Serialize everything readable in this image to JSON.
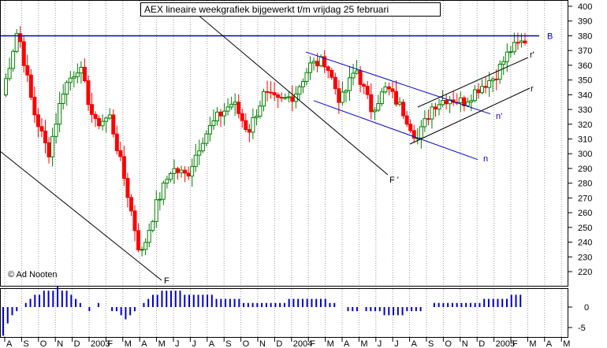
{
  "chart_data": {
    "type": "candlestick",
    "title": "AEX lineaire weekgrafiek bijgewerkt t/m vrijdag 25 februari",
    "copyright": "© Ad Nooten",
    "x_tick_labels": [
      "A",
      "S",
      "O",
      "N",
      "D",
      "2003",
      "F",
      "M",
      "A",
      "M",
      "J",
      "J",
      "A",
      "S",
      "O",
      "N",
      "D",
      "2004",
      "F",
      "M",
      "A",
      "M",
      "J",
      "J",
      "A",
      "S",
      "O",
      "N",
      "D",
      "2005",
      "F",
      "M",
      "A",
      "M"
    ],
    "ylim": [
      215,
      405
    ],
    "yticks": [
      220,
      230,
      240,
      250,
      260,
      270,
      280,
      290,
      300,
      310,
      320,
      330,
      340,
      350,
      360,
      370,
      380,
      390,
      400
    ],
    "grid": "vertical-dotted",
    "price_series": {
      "name": "AEX",
      "approx_close_waypoints": [
        {
          "x": "Aug 2002 (start)",
          "y": 340
        },
        {
          "x": "Aug 2002",
          "y": 385
        },
        {
          "x": "Sep 2002",
          "y": 330
        },
        {
          "x": "Oct 2002",
          "y": 300
        },
        {
          "x": "Nov 2002",
          "y": 345
        },
        {
          "x": "Dec 2002",
          "y": 360
        },
        {
          "x": "Dec 2002",
          "y": 320
        },
        {
          "x": "Jan 2003",
          "y": 325
        },
        {
          "x": "Feb 2003",
          "y": 280
        },
        {
          "x": "Mar 2003",
          "y": 230
        },
        {
          "x": "Mar 2003",
          "y": 265
        },
        {
          "x": "Apr 2003",
          "y": 290
        },
        {
          "x": "May 2003",
          "y": 285
        },
        {
          "x": "Jun 2003",
          "y": 310
        },
        {
          "x": "Jul 2003",
          "y": 325
        },
        {
          "x": "Aug 2003",
          "y": 335
        },
        {
          "x": "Sep 2003",
          "y": 315
        },
        {
          "x": "Oct 2003",
          "y": 340
        },
        {
          "x": "Nov 2003",
          "y": 335
        },
        {
          "x": "Dec 2003",
          "y": 340
        },
        {
          "x": "Jan 2004",
          "y": 360
        },
        {
          "x": "Feb 2004",
          "y": 363
        },
        {
          "x": "Mar 2004",
          "y": 335
        },
        {
          "x": "Apr 2004",
          "y": 358
        },
        {
          "x": "May 2004",
          "y": 330
        },
        {
          "x": "Jun 2004",
          "y": 345
        },
        {
          "x": "Jul 2004",
          "y": 330
        },
        {
          "x": "Aug 2004",
          "y": 310
        },
        {
          "x": "Sep 2004",
          "y": 333
        },
        {
          "x": "Oct 2004",
          "y": 338
        },
        {
          "x": "Nov 2004",
          "y": 335
        },
        {
          "x": "Dec 2004",
          "y": 345
        },
        {
          "x": "Jan 2005",
          "y": 352
        },
        {
          "x": "Feb 2005",
          "y": 370
        },
        {
          "x": "25 Feb 2005",
          "y": 377
        }
      ]
    },
    "trendlines": [
      {
        "label": "B",
        "color": "#0000cc",
        "level": 380
      },
      {
        "label": "F",
        "color": "#000000"
      },
      {
        "label": "F '",
        "color": "#000000"
      },
      {
        "label": "n",
        "color": "#0000cc"
      },
      {
        "label": "n'",
        "color": "#0000cc"
      },
      {
        "label": "r",
        "color": "#000000"
      },
      {
        "label": "r'",
        "color": "#000000"
      }
    ],
    "indicator": {
      "yticks": [
        0,
        -5
      ],
      "approx_values": [
        -7,
        -4,
        -2,
        -1,
        0,
        1,
        2,
        3,
        3,
        4,
        4,
        4,
        5,
        4,
        4,
        3,
        2,
        1,
        0,
        -1,
        0,
        1,
        0,
        0,
        -1,
        -1,
        -2,
        -3,
        -2,
        -1,
        0,
        1,
        2,
        3,
        3,
        4,
        4,
        4,
        4,
        4,
        3,
        3,
        3,
        3,
        3,
        3,
        3,
        2,
        2,
        2,
        2,
        2,
        2,
        1,
        1,
        1,
        1,
        1,
        1,
        1,
        1,
        1,
        1,
        2,
        2,
        2,
        2,
        2,
        2,
        2,
        2,
        2,
        1,
        1,
        0,
        0,
        -1,
        -1,
        -1,
        0,
        -1,
        -1,
        -1,
        -1,
        -2,
        -2,
        -2,
        -2,
        -2,
        -1,
        -1,
        -1,
        -1,
        0,
        0,
        1,
        1,
        1,
        1,
        1,
        1,
        1,
        1,
        1,
        1,
        1,
        2,
        2,
        2,
        2,
        2,
        2,
        3,
        3,
        3
      ]
    }
  }
}
